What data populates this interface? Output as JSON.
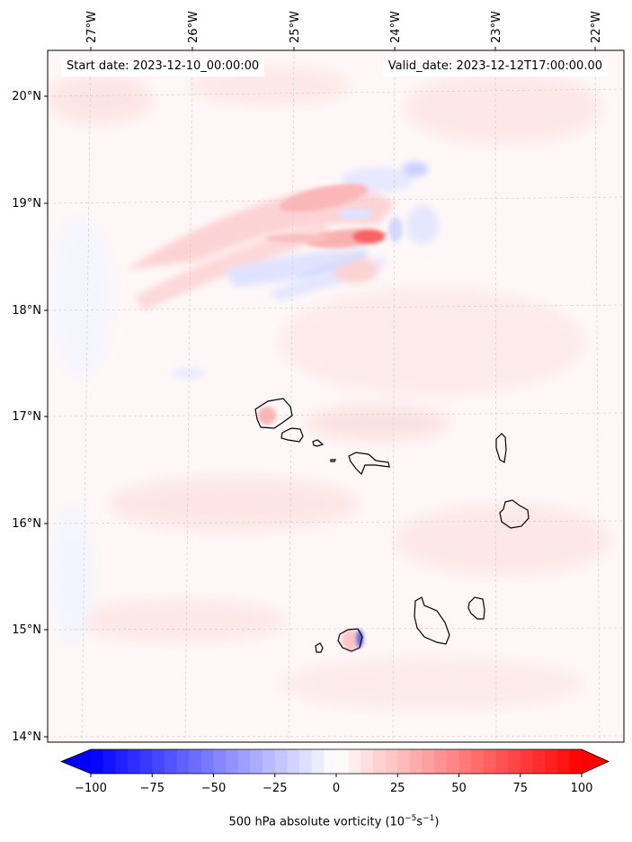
{
  "header": {
    "start_label": "Start date:",
    "start_value": "2023-12-10_00:00:00",
    "valid_label": "Valid_date:",
    "valid_value": "2023-12-12T17:00:00.00"
  },
  "map": {
    "lon_ticks": [
      {
        "value": -27,
        "label": "27°W"
      },
      {
        "value": -26,
        "label": "26°W"
      },
      {
        "value": -25,
        "label": "25°W"
      },
      {
        "value": -24,
        "label": "24°W"
      },
      {
        "value": -23,
        "label": "23°W"
      },
      {
        "value": -22,
        "label": "22°W"
      }
    ],
    "lat_ticks": [
      {
        "value": 14,
        "label": "14°N"
      },
      {
        "value": 15,
        "label": "15°N"
      },
      {
        "value": 16,
        "label": "16°N"
      },
      {
        "value": 17,
        "label": "17°N"
      },
      {
        "value": 18,
        "label": "18°N"
      },
      {
        "value": 19,
        "label": "19°N"
      },
      {
        "value": 20,
        "label": "20°N"
      }
    ],
    "islands": [
      {
        "name": "Santo Antão",
        "center": [
          -25.17,
          16.98
        ]
      },
      {
        "name": "São Vicente",
        "center": [
          -24.97,
          16.85
        ]
      },
      {
        "name": "Santa Luzia",
        "center": [
          -24.73,
          16.76
        ]
      },
      {
        "name": "Raso",
        "center": [
          -24.55,
          16.62
        ]
      },
      {
        "name": "São Nicolau",
        "center": [
          -24.25,
          16.6
        ]
      },
      {
        "name": "Sal",
        "center": [
          -22.93,
          16.72
        ]
      },
      {
        "name": "Boa Vista",
        "center": [
          -22.82,
          16.08
        ]
      },
      {
        "name": "Maio",
        "center": [
          -23.17,
          15.2
        ]
      },
      {
        "name": "Santiago",
        "center": [
          -23.6,
          15.05
        ]
      },
      {
        "name": "Fogo",
        "center": [
          -24.4,
          14.9
        ]
      },
      {
        "name": "Brava",
        "center": [
          -24.72,
          14.85
        ]
      }
    ]
  },
  "colorbar": {
    "min": -100,
    "max": 100,
    "ticks": [
      "−100",
      "−75",
      "−50",
      "−25",
      "0",
      "25",
      "50",
      "75",
      "100"
    ],
    "neg_color": "#0000ff",
    "pos_color": "#ff0000",
    "title": "500 hPa absolute vorticity (10",
    "title_exp1": "−5",
    "title_mid": "s",
    "title_exp2": "−1",
    "title_end": ")"
  }
}
